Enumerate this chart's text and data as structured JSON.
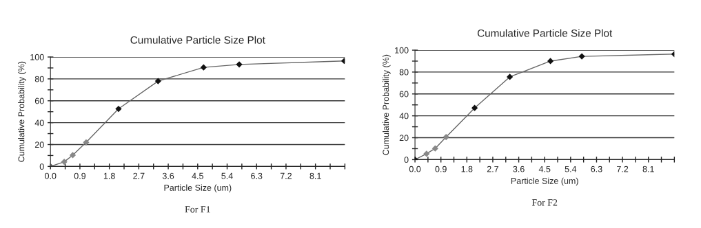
{
  "chart_data": [
    {
      "type": "line",
      "title": "Cumulative Particle Size Plot",
      "xlabel": "Particle Size (um)",
      "ylabel": "Cumulative Probability (%)",
      "annotations": [
        "For F1"
      ],
      "x": [
        0,
        0.42,
        0.68,
        1.09,
        2.08,
        3.29,
        4.68,
        5.77,
        8.98
      ],
      "series": [
        {
          "color": "#666666",
          "values": [
            0,
            4.2,
            10.3,
            22,
            52.6,
            78,
            90.5,
            93.2,
            96.4
          ],
          "colors": [
            "#555555",
            "#888888",
            "#888888",
            "#888888",
            "#111111",
            "#111111",
            "#111111",
            "#111111",
            "#111111"
          ]
        }
      ],
      "xlim": [
        0,
        9.0
      ],
      "xticks": [
        {
          "value": 0,
          "label": "0.0"
        },
        {
          "value": 0.45,
          "label": null
        },
        {
          "value": 0.9,
          "label": "0.9"
        },
        {
          "value": 1.35,
          "label": null
        },
        1.8,
        {
          "value": 2.25,
          "label": null
        },
        2.7,
        {
          "value": 3.15,
          "label": null
        },
        3.6,
        {
          "value": 4.05,
          "label": null
        },
        4.5,
        {
          "value": 4.95,
          "label": null
        },
        5.4,
        {
          "value": 5.85,
          "label": null
        },
        6.3,
        {
          "value": 6.75,
          "label": null
        },
        7.2,
        {
          "value": 7.65,
          "label": null
        },
        8.1,
        {
          "value": 8.55,
          "label": null
        },
        {
          "value": 9.0,
          "label": null
        }
      ],
      "ylim": [
        0,
        100
      ],
      "yticks": [
        0,
        {
          "value": 10,
          "label": null
        },
        20,
        {
          "value": 30,
          "label": null
        },
        40,
        {
          "value": 50,
          "label": null
        },
        60,
        {
          "value": 70,
          "label": null
        },
        80,
        {
          "value": 90,
          "label": null
        },
        100
      ],
      "grid": "y",
      "marker": "diamond",
      "line_style": "solid"
    },
    {
      "type": "line",
      "title": "Cumulative Particle Size Plot",
      "xlabel": "Particle Size (um)",
      "ylabel": "Cumulative Probability (%)",
      "annotations": [
        "For F2"
      ],
      "x": [
        0,
        0.4,
        0.7,
        1.08,
        2.07,
        3.29,
        4.7,
        5.79,
        9.0
      ],
      "series": [
        {
          "color": "#666666",
          "values": [
            0,
            5.3,
            10.2,
            20.6,
            47.2,
            75.6,
            90,
            94.3,
            96.4
          ],
          "colors": [
            "#111111",
            "#888888",
            "#888888",
            "#888888",
            "#111111",
            "#111111",
            "#111111",
            "#111111",
            "#111111"
          ]
        }
      ],
      "xlim": [
        0,
        9.0
      ],
      "xticks": [
        {
          "value": 0,
          "label": "0.0"
        },
        {
          "value": 0.45,
          "label": null
        },
        {
          "value": 0.9,
          "label": "0.9"
        },
        {
          "value": 1.35,
          "label": null
        },
        1.8,
        {
          "value": 2.25,
          "label": null
        },
        2.7,
        {
          "value": 3.15,
          "label": null
        },
        3.6,
        {
          "value": 4.05,
          "label": null
        },
        4.5,
        {
          "value": 4.95,
          "label": null
        },
        5.4,
        {
          "value": 5.85,
          "label": null
        },
        6.3,
        {
          "value": 6.75,
          "label": null
        },
        7.2,
        {
          "value": 7.65,
          "label": null
        },
        8.1,
        {
          "value": 8.55,
          "label": null
        },
        {
          "value": 9.0,
          "label": null
        }
      ],
      "ylim": [
        0,
        100
      ],
      "yticks": [
        0,
        {
          "value": 10,
          "label": null
        },
        20,
        {
          "value": 30,
          "label": null
        },
        40,
        {
          "value": 50,
          "label": null
        },
        60,
        {
          "value": 70,
          "label": null
        },
        80,
        {
          "value": 90,
          "label": null
        },
        100
      ],
      "grid": "y",
      "marker": "diamond",
      "line_style": "solid"
    }
  ]
}
